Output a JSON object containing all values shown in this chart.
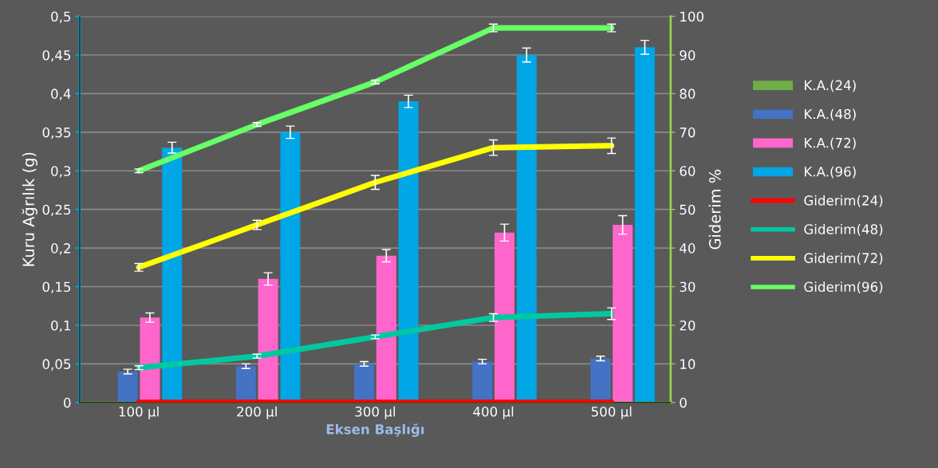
{
  "chart_data": {
    "type": "bar",
    "categories": [
      "100 µl",
      "200 µl",
      "300 µl",
      "400 µl",
      "500 µl"
    ],
    "xlabel": "Eksen Başlığı",
    "ylabel": "Kuru Ağrılık (g)",
    "y2label": "Giderim %",
    "ylim": [
      0,
      0.5
    ],
    "yticks": [
      {
        "value": 0,
        "label": "0"
      },
      {
        "value": 0.05,
        "label": "0,05"
      },
      {
        "value": 0.1,
        "label": "0,1"
      },
      {
        "value": 0.15,
        "label": "0,15"
      },
      {
        "value": 0.2,
        "label": "0,2"
      },
      {
        "value": 0.25,
        "label": "0,25"
      },
      {
        "value": 0.3,
        "label": "0,3"
      },
      {
        "value": 0.35,
        "label": "0,35"
      },
      {
        "value": 0.4,
        "label": "0,4"
      },
      {
        "value": 0.45,
        "label": "0,45"
      },
      {
        "value": 0.5,
        "label": "0,5"
      }
    ],
    "y2lim": [
      0,
      100
    ],
    "y2ticks": [
      0,
      10,
      20,
      30,
      40,
      50,
      60,
      70,
      80,
      90,
      100
    ],
    "grid": "y",
    "legend": "right",
    "series": [
      {
        "name": "K.A.(24)",
        "color": "#70ad47",
        "values": [
          0,
          0,
          0,
          0,
          0
        ]
      },
      {
        "name": "K.A.(48)",
        "color": "#4472c4",
        "values": [
          0.04,
          0.047,
          0.05,
          0.053,
          0.057
        ],
        "errors": [
          0.003,
          0.003,
          0.003,
          0.003,
          0.003
        ]
      },
      {
        "name": "K.A.(72)",
        "color": "#ff66cc",
        "values": [
          0.11,
          0.16,
          0.19,
          0.22,
          0.23
        ],
        "errors": [
          0.006,
          0.008,
          0.008,
          0.011,
          0.012
        ]
      },
      {
        "name": "K.A.(96)",
        "color": "#00a6e6",
        "values": [
          0.33,
          0.35,
          0.39,
          0.45,
          0.46
        ],
        "errors": [
          0.007,
          0.008,
          0.008,
          0.009,
          0.009
        ]
      },
      {
        "name": "Giderim(24)",
        "type": "line",
        "axis": "y2",
        "color": "#ff0000",
        "values": [
          0,
          0,
          0,
          0,
          0
        ]
      },
      {
        "name": "Giderim(48)",
        "type": "line",
        "axis": "y2",
        "color": "#00c9a0",
        "values": [
          9,
          12,
          17,
          22,
          23
        ],
        "errors": [
          0.5,
          0.5,
          0.5,
          1,
          1.5
        ]
      },
      {
        "name": "Giderim(72)",
        "type": "line",
        "axis": "y2",
        "color": "#ffff00",
        "values": [
          35,
          46,
          57,
          66,
          66.5
        ],
        "errors": [
          1,
          1.2,
          1.8,
          2,
          2
        ]
      },
      {
        "name": "Giderim(96)",
        "type": "line",
        "axis": "y2",
        "color": "#66ff66",
        "values": [
          60,
          72,
          83,
          97,
          97
        ],
        "errors": [
          0.5,
          0.5,
          0.5,
          1,
          1
        ]
      }
    ]
  }
}
